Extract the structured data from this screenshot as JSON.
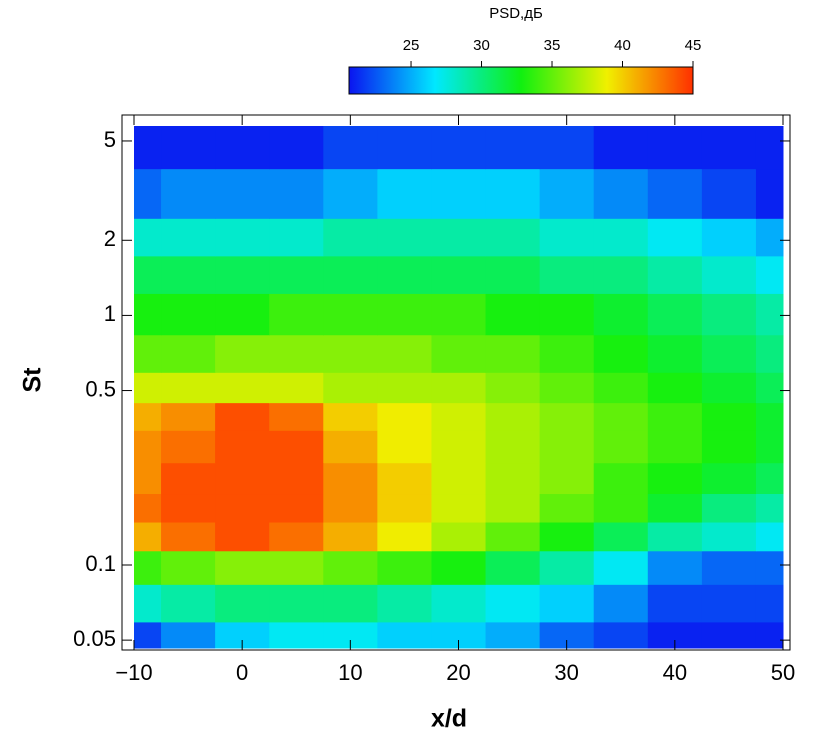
{
  "chart_data": {
    "type": "heatmap",
    "xlabel": "x/d",
    "ylabel": "St",
    "colorbar_label": "PSD,дБ",
    "x": [
      -10,
      -5,
      0,
      5,
      10,
      15,
      20,
      25,
      30,
      35,
      40,
      45,
      50
    ],
    "y": [
      0.05,
      0.07,
      0.1,
      0.13,
      0.17,
      0.22,
      0.3,
      0.4,
      0.5,
      0.7,
      1,
      1.5,
      2,
      3,
      5
    ],
    "z": [
      [
        22,
        24,
        26,
        27,
        27,
        26,
        26,
        25,
        23,
        22,
        21,
        21,
        21
      ],
      [
        28,
        29,
        30,
        30,
        30,
        29,
        28,
        27,
        26,
        24,
        22,
        22,
        22
      ],
      [
        34,
        35,
        36,
        36,
        35,
        34,
        33,
        31,
        29,
        27,
        24,
        23,
        23
      ],
      [
        41,
        43,
        44,
        43,
        41,
        39,
        37,
        35,
        33,
        31,
        29,
        28,
        27
      ],
      [
        43,
        44,
        44,
        44,
        42,
        40,
        38,
        37,
        35,
        34,
        32,
        30,
        29
      ],
      [
        42,
        44,
        44,
        44,
        42,
        40,
        38,
        37,
        36,
        34,
        33,
        32,
        31
      ],
      [
        42,
        43,
        44,
        44,
        41,
        39,
        38,
        37,
        36,
        35,
        34,
        33,
        32
      ],
      [
        41,
        42,
        44,
        43,
        40,
        39,
        38,
        37,
        36,
        35,
        34,
        33,
        32
      ],
      [
        38,
        38,
        38,
        38,
        37,
        37,
        37,
        36,
        35,
        34,
        33,
        32,
        31
      ],
      [
        35,
        35,
        36,
        36,
        36,
        36,
        35,
        35,
        34,
        33,
        32,
        31,
        30
      ],
      [
        33,
        33,
        33,
        34,
        34,
        34,
        34,
        33,
        33,
        32,
        31,
        30,
        29
      ],
      [
        31,
        31,
        31,
        31,
        31,
        31,
        31,
        31,
        30,
        30,
        29,
        28,
        27
      ],
      [
        28,
        28,
        28,
        28,
        29,
        29,
        29,
        29,
        28,
        28,
        27,
        26,
        25
      ],
      [
        23,
        24,
        24,
        24,
        25,
        26,
        26,
        26,
        25,
        24,
        23,
        22,
        21
      ],
      [
        21,
        21,
        21,
        21,
        22,
        22,
        22,
        22,
        22,
        21,
        21,
        21,
        21
      ]
    ],
    "xlim": [
      -10,
      50
    ],
    "xticks": [
      {
        "value": -10,
        "label": "−10"
      },
      0,
      10,
      20,
      30,
      40,
      50
    ],
    "ylim": [
      0.0465,
      5.74
    ],
    "y_log": true,
    "yticks": [
      0.05,
      0.1,
      0.5,
      1,
      2,
      5
    ],
    "clim": [
      20.6,
      45
    ],
    "cticks": [
      25,
      30,
      35,
      40,
      45
    ],
    "colormap": [
      "#0a14f0",
      "#00e8ff",
      "#10f010",
      "#f0f000",
      "#ff3000"
    ]
  }
}
